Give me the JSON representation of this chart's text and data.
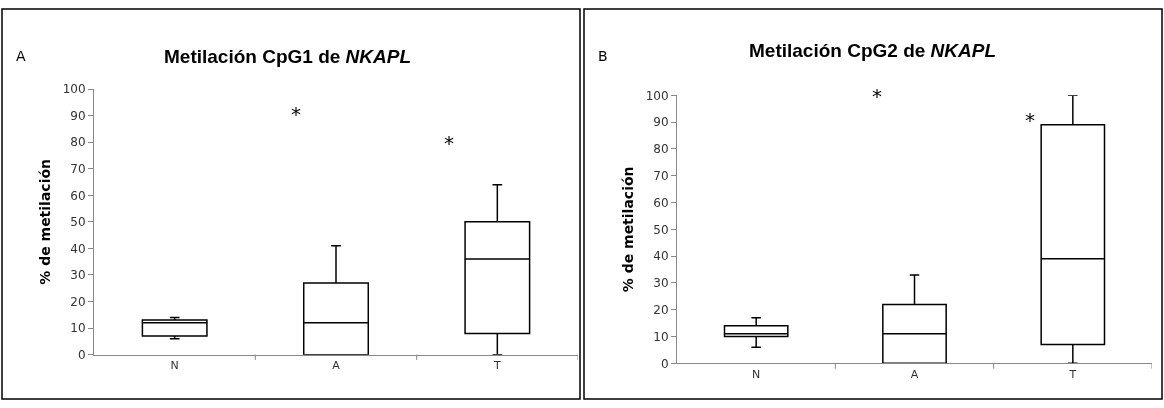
{
  "chart_data": [
    {
      "type": "box",
      "title": "Metilación CpG1 de NKAPL",
      "ylabel": "% de metilación",
      "categories": [
        "N",
        "A",
        "T"
      ],
      "boxes": [
        {
          "low": 6,
          "q1": 7,
          "median": 12,
          "q3": 13,
          "high": 14
        },
        {
          "low": 0,
          "q1": 0,
          "median": 12,
          "q3": 27,
          "high": 41
        },
        {
          "low": 0,
          "q1": 8,
          "median": 36,
          "q3": 50,
          "high": 64
        }
      ],
      "ylim": [
        0,
        100
      ],
      "yticks": [
        0,
        10,
        20,
        30,
        40,
        50,
        60,
        70,
        80,
        90,
        100
      ],
      "annotations": [
        "A",
        "*",
        "*"
      ]
    },
    {
      "type": "box",
      "title": "Metilación CpG2 de NKAPL",
      "ylabel": "% de metilación",
      "categories": [
        "N",
        "A",
        "T"
      ],
      "boxes": [
        {
          "low": 6,
          "q1": 10,
          "median": 11,
          "q3": 14,
          "high": 17
        },
        {
          "low": 0,
          "q1": 0,
          "median": 11,
          "q3": 22,
          "high": 33
        },
        {
          "low": 0,
          "q1": 7,
          "median": 39,
          "q3": 89,
          "high": 100
        }
      ],
      "ylim": [
        0,
        100
      ],
      "yticks": [
        0,
        10,
        20,
        30,
        40,
        50,
        60,
        70,
        80,
        90,
        100
      ],
      "annotations": [
        "B",
        "*",
        "*"
      ]
    }
  ]
}
